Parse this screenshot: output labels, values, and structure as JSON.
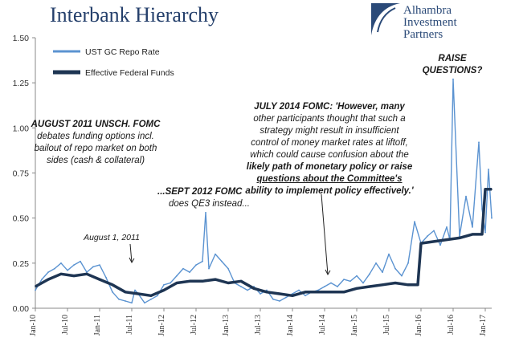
{
  "title": "Interbank Hierarchy",
  "logo": {
    "line1": "Alhambra",
    "line2": "Investment",
    "line3": "Partners"
  },
  "chart_data": {
    "type": "line",
    "title": "Interbank Hierarchy",
    "xlabel": "",
    "ylabel": "",
    "ylim": [
      0,
      1.5
    ],
    "xlim": [
      "2010-01",
      "2017-02"
    ],
    "grid": false,
    "legend": "top-left",
    "yticks": [
      "0.00",
      "0.25",
      "0.50",
      "0.75",
      "1.00",
      "1.25",
      "1.50"
    ],
    "xticks": [
      "Jan-10",
      "Jul-10",
      "Jan-11",
      "Jul-11",
      "Jan-12",
      "Jul-12",
      "Jan-13",
      "Jul-13",
      "Jan-14",
      "Jul-14",
      "Jan-15",
      "Jul-15",
      "Jan-16",
      "Jul-16",
      "Jan-17"
    ],
    "series": [
      {
        "name": "UST GC Repo Rate",
        "color": "#5b93d1",
        "x": [
          2010.0,
          2010.1,
          2010.2,
          2010.3,
          2010.4,
          2010.5,
          2010.6,
          2010.7,
          2010.8,
          2010.9,
          2011.0,
          2011.1,
          2011.2,
          2011.3,
          2011.4,
          2011.5,
          2011.55,
          2011.6,
          2011.7,
          2011.8,
          2011.9,
          2012.0,
          2012.1,
          2012.2,
          2012.3,
          2012.4,
          2012.5,
          2012.6,
          2012.65,
          2012.7,
          2012.8,
          2012.9,
          2013.0,
          2013.1,
          2013.2,
          2013.3,
          2013.4,
          2013.5,
          2013.6,
          2013.7,
          2013.8,
          2013.9,
          2014.0,
          2014.1,
          2014.2,
          2014.3,
          2014.4,
          2014.5,
          2014.6,
          2014.7,
          2014.8,
          2014.9,
          2015.0,
          2015.1,
          2015.2,
          2015.3,
          2015.4,
          2015.5,
          2015.6,
          2015.7,
          2015.8,
          2015.9,
          2016.0,
          2016.1,
          2016.2,
          2016.3,
          2016.4,
          2016.45,
          2016.5,
          2016.6,
          2016.7,
          2016.8,
          2016.9,
          2016.95,
          2017.0,
          2017.05,
          2017.1
        ],
        "values": [
          0.1,
          0.16,
          0.2,
          0.22,
          0.25,
          0.21,
          0.24,
          0.26,
          0.2,
          0.23,
          0.24,
          0.17,
          0.09,
          0.05,
          0.04,
          0.03,
          0.1,
          0.08,
          0.03,
          0.05,
          0.07,
          0.13,
          0.14,
          0.18,
          0.22,
          0.2,
          0.24,
          0.26,
          0.53,
          0.22,
          0.3,
          0.26,
          0.22,
          0.14,
          0.12,
          0.1,
          0.12,
          0.08,
          0.1,
          0.05,
          0.04,
          0.06,
          0.08,
          0.1,
          0.07,
          0.09,
          0.1,
          0.12,
          0.14,
          0.12,
          0.16,
          0.15,
          0.18,
          0.14,
          0.19,
          0.25,
          0.2,
          0.3,
          0.22,
          0.18,
          0.25,
          0.48,
          0.36,
          0.4,
          0.43,
          0.35,
          0.45,
          0.38,
          1.27,
          0.4,
          0.62,
          0.45,
          0.92,
          0.55,
          0.42,
          0.77,
          0.5
        ]
      },
      {
        "name": "Effective Federal Funds",
        "color": "#1e3553",
        "x": [
          2010.0,
          2010.2,
          2010.4,
          2010.6,
          2010.8,
          2011.0,
          2011.2,
          2011.4,
          2011.6,
          2011.8,
          2012.0,
          2012.2,
          2012.4,
          2012.6,
          2012.8,
          2013.0,
          2013.2,
          2013.4,
          2013.6,
          2013.8,
          2014.0,
          2014.2,
          2014.4,
          2014.6,
          2014.8,
          2015.0,
          2015.2,
          2015.4,
          2015.6,
          2015.8,
          2015.95,
          2016.0,
          2016.2,
          2016.4,
          2016.6,
          2016.8,
          2016.95,
          2017.0,
          2017.1
        ],
        "values": [
          0.12,
          0.16,
          0.19,
          0.18,
          0.19,
          0.16,
          0.13,
          0.09,
          0.08,
          0.07,
          0.1,
          0.14,
          0.15,
          0.15,
          0.16,
          0.14,
          0.15,
          0.11,
          0.09,
          0.08,
          0.07,
          0.09,
          0.09,
          0.09,
          0.09,
          0.11,
          0.12,
          0.13,
          0.14,
          0.13,
          0.13,
          0.36,
          0.37,
          0.38,
          0.39,
          0.41,
          0.41,
          0.66,
          0.66
        ]
      }
    ],
    "annotations": [
      {
        "id": "aug2011",
        "lines": [
          "AUGUST 2011 UNSCH. FOMC",
          "debates funding options incl.",
          "bailout of repo market on both",
          "sides (cash & collateral)"
        ]
      },
      {
        "id": "sept2012",
        "lines": [
          "...SEPT 2012 FOMC",
          "does QE3 instead..."
        ]
      },
      {
        "id": "aug1",
        "lines": [
          "August 1, 2011"
        ]
      },
      {
        "id": "july2014",
        "lines": [
          "JULY 2014 FOMC:  'However, many",
          "other participants thought that such a",
          "strategy might result in insufficient",
          "control of money market rates at liftoff,",
          "which could cause confusion about the",
          "likely path of monetary policy or raise",
          "questions about  the Committee's",
          "ability to implement policy effectively.'"
        ]
      },
      {
        "id": "raise",
        "lines": [
          "RAISE QUESTIONS?"
        ]
      }
    ]
  }
}
